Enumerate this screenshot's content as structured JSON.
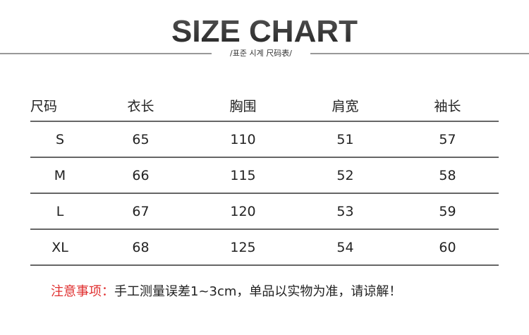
{
  "title": "SIZE CHART",
  "subtitle": "/표준 시계 尺码表/",
  "table": {
    "headers": [
      "尺码",
      "衣长",
      "胸围",
      "肩宽",
      "袖长"
    ],
    "rows": [
      [
        "S",
        "65",
        "110",
        "51",
        "57"
      ],
      [
        "M",
        "66",
        "115",
        "52",
        "58"
      ],
      [
        "L",
        "67",
        "120",
        "53",
        "59"
      ],
      [
        "XL",
        "68",
        "125",
        "54",
        "60"
      ]
    ]
  },
  "note": {
    "label": "注意事项：",
    "text": "手工测量误差1~3cm，单品以实物为准，请谅解！"
  },
  "colors": {
    "note_label": "#e03030"
  }
}
